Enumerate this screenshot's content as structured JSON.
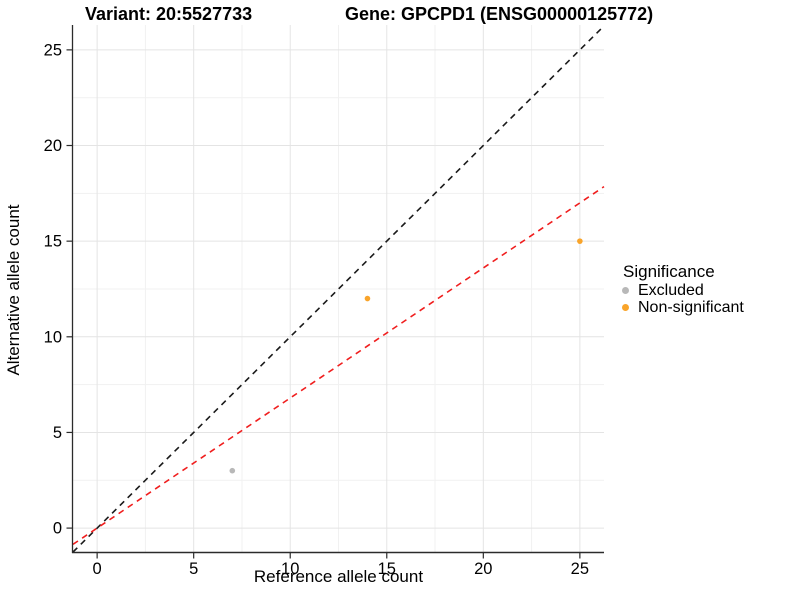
{
  "header": {
    "variant_title": "Variant: 20:5527733",
    "gene_title": "Gene: GPCPD1 (ENSG00000125772)"
  },
  "chart_data": {
    "type": "scatter",
    "xlabel": "Reference allele count",
    "ylabel": "Alternative allele count",
    "x_ticks": [
      0,
      5,
      10,
      15,
      20,
      25
    ],
    "y_ticks": [
      0,
      5,
      10,
      15,
      20,
      25
    ],
    "xlim": [
      -1.25,
      26.25
    ],
    "ylim": [
      -1.25,
      26.3
    ],
    "grid": "major-and-minor",
    "minor_grid_step": 2.5,
    "points": [
      {
        "x": 7,
        "y": 3,
        "series": "Excluded"
      },
      {
        "x": 14,
        "y": 12,
        "series": "Non-significant"
      },
      {
        "x": 25,
        "y": 15,
        "series": "Non-significant"
      }
    ],
    "lines": [
      {
        "name": "identity-line",
        "slope": 1,
        "intercept": 0,
        "color": "#1a1a1a",
        "style": "dashed"
      },
      {
        "name": "expected-ratio-line",
        "slope": 0.68,
        "intercept": 0,
        "color": "#f01e1e",
        "style": "dashed"
      }
    ],
    "legend": {
      "title": "Significance",
      "position": "right",
      "entries": [
        {
          "label": "Excluded",
          "color": "#b8b8b8"
        },
        {
          "label": "Non-significant",
          "color": "#f9a42a"
        }
      ]
    },
    "colors": {
      "major_grid": "#e4e4e4",
      "minor_grid": "#f1f1f1",
      "axis_line": "#2b2b2b",
      "tick_label": "#000000"
    }
  }
}
